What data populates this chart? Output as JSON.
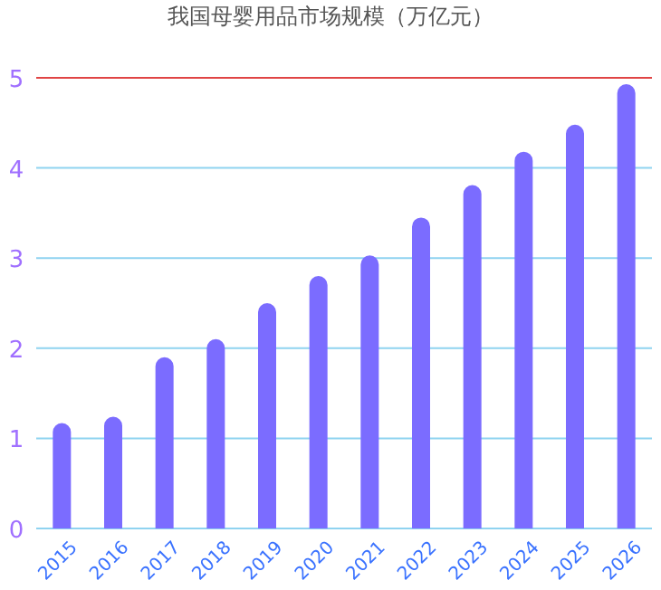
{
  "chart_data": {
    "type": "bar",
    "title": "我国母婴用品市场规模（万亿元）",
    "categories": [
      "2015",
      "2016",
      "2017",
      "2018",
      "2019",
      "2020",
      "2021",
      "2022",
      "2023",
      "2024",
      "2025",
      "2026"
    ],
    "values": [
      1.17,
      1.24,
      1.9,
      2.1,
      2.5,
      2.8,
      3.03,
      3.45,
      3.81,
      4.18,
      4.48,
      4.93
    ],
    "color": "#7b6cff",
    "marker": "circle",
    "ylim": [
      0,
      5
    ],
    "yticks": [
      0,
      1,
      2,
      3,
      4,
      5
    ],
    "grid": "y",
    "ref_lines": [
      {
        "axis": "y",
        "value": 5,
        "color": "#e04545"
      }
    ]
  }
}
